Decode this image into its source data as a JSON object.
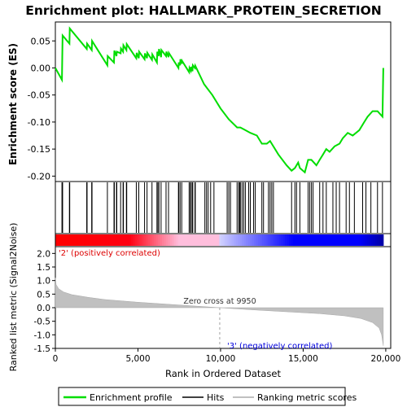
{
  "chart_data": {
    "type": "line",
    "title": "Enrichment plot: HALLMARK_PROTEIN_SECRETION",
    "top_panel": {
      "ylabel": "Enrichment score (ES)",
      "ylim": [
        -0.21,
        0.085
      ],
      "yticks": [
        "0.05",
        "0.00",
        "-0.05",
        "-0.10",
        "-0.15",
        "-0.20"
      ],
      "ytick_values": [
        0.05,
        0.0,
        -0.05,
        -0.1,
        -0.15,
        -0.2
      ],
      "series_color": "#00dd00",
      "series": [
        {
          "name": "Enrichment profile",
          "x": [
            0,
            400,
            420,
            440,
            850,
            870,
            1900,
            1920,
            2200,
            2220,
            3150,
            3170,
            3550,
            3570,
            3700,
            3720,
            3950,
            3970,
            4100,
            4120,
            4300,
            4320,
            4900,
            4920,
            5050,
            5070,
            5400,
            5420,
            5550,
            5570,
            5850,
            5870,
            6150,
            6170,
            6250,
            6270,
            6400,
            6420,
            6700,
            6720,
            6850,
            6870,
            7450,
            7470,
            7550,
            7570,
            7650,
            7670,
            8100,
            8120,
            8200,
            8220,
            8300,
            8320,
            8450,
            8470,
            9000,
            9500,
            10000,
            10500,
            11000,
            11200,
            11500,
            11800,
            12200,
            12500,
            12800,
            13000,
            13500,
            14000,
            14300,
            14500,
            14700,
            14800,
            15100,
            15300,
            15500,
            15800,
            16000,
            16200,
            16400,
            16600,
            16900,
            17200,
            17400,
            17700,
            18000,
            18400,
            18700,
            18900,
            19200,
            19500,
            19800,
            19850
          ],
          "y": [
            0.0,
            -0.022,
            0.02,
            0.06,
            0.045,
            0.073,
            0.035,
            0.045,
            0.033,
            0.05,
            0.005,
            0.022,
            0.01,
            0.032,
            0.022,
            0.03,
            0.027,
            0.036,
            0.03,
            0.042,
            0.033,
            0.044,
            0.018,
            0.028,
            0.018,
            0.03,
            0.016,
            0.027,
            0.018,
            0.028,
            0.015,
            0.025,
            0.01,
            0.03,
            0.022,
            0.035,
            0.02,
            0.033,
            0.022,
            0.03,
            0.02,
            0.028,
            0.0,
            0.01,
            0.005,
            0.016,
            0.008,
            0.013,
            -0.008,
            0.0,
            -0.005,
            0.002,
            -0.006,
            0.005,
            0.0,
            0.004,
            -0.03,
            -0.05,
            -0.075,
            -0.095,
            -0.11,
            -0.11,
            -0.115,
            -0.12,
            -0.125,
            -0.14,
            -0.14,
            -0.135,
            -0.16,
            -0.18,
            -0.19,
            -0.185,
            -0.175,
            -0.185,
            -0.193,
            -0.17,
            -0.17,
            -0.18,
            -0.17,
            -0.16,
            -0.15,
            -0.155,
            -0.145,
            -0.14,
            -0.13,
            -0.12,
            -0.125,
            -0.115,
            -0.1,
            -0.09,
            -0.08,
            -0.08,
            -0.09,
            0.0
          ]
        }
      ]
    },
    "hits_x": [
      400,
      420,
      440,
      850,
      870,
      1900,
      1920,
      2200,
      2220,
      3150,
      3550,
      3570,
      3700,
      3720,
      3950,
      4100,
      4120,
      4300,
      4320,
      4900,
      5050,
      5400,
      5550,
      5850,
      6150,
      6170,
      6250,
      6270,
      6400,
      6700,
      6850,
      7450,
      7470,
      7550,
      7650,
      8100,
      8120,
      8200,
      8220,
      8300,
      8320,
      8450,
      8470,
      9050,
      9150,
      9250,
      9400,
      9600,
      10400,
      10500,
      10600,
      11000,
      11100,
      11150,
      11200,
      11300,
      11400,
      11500,
      11700,
      11800,
      12000,
      12100,
      12500,
      12600,
      12900,
      13000,
      13100,
      13200,
      14300,
      14500,
      14600,
      14800,
      15300,
      15400,
      15500,
      15600,
      16000,
      16200,
      16400,
      16800,
      17000,
      17200,
      17600,
      17800,
      18100,
      18600,
      18800,
      19100,
      19500,
      19800
    ],
    "bottom_panel": {
      "ylabel": "Ranked list metric (Signal2Noise)",
      "xlabel": "Rank in Ordered Dataset",
      "ylim": [
        -1.5,
        2.25
      ],
      "yticks": [
        "2.0",
        "1.5",
        "1.0",
        "0.5",
        "0.0",
        "-0.5",
        "-1.0",
        "-1.5"
      ],
      "ytick_values": [
        2.0,
        1.5,
        1.0,
        0.5,
        0.0,
        -0.5,
        -1.0,
        -1.5
      ],
      "metric_x": [
        0,
        50,
        200,
        500,
        1000,
        2000,
        3000,
        5000,
        7000,
        9950,
        12000,
        14000,
        16000,
        17500,
        18500,
        19200,
        19600,
        19750,
        19850
      ],
      "metric_y": [
        1.1,
        0.85,
        0.7,
        0.58,
        0.48,
        0.38,
        0.3,
        0.2,
        0.12,
        0.0,
        -0.08,
        -0.15,
        -0.22,
        -0.3,
        -0.4,
        -0.55,
        -0.75,
        -1.0,
        -1.4
      ],
      "annotations": [
        "'2' (positively correlated)",
        "Zero cross at 9950",
        "'3' (negatively correlated)"
      ],
      "zero_cross": 9950
    },
    "xlim": [
      0,
      20300
    ],
    "xticks": [
      "0",
      "5,000",
      "10,000",
      "15,000",
      "20,000"
    ],
    "xtick_values": [
      0,
      5000,
      10000,
      15000,
      20000
    ],
    "legend": {
      "position": "bottom",
      "entries": [
        "Enrichment profile",
        "Hits",
        "Ranking metric scores"
      ]
    }
  }
}
